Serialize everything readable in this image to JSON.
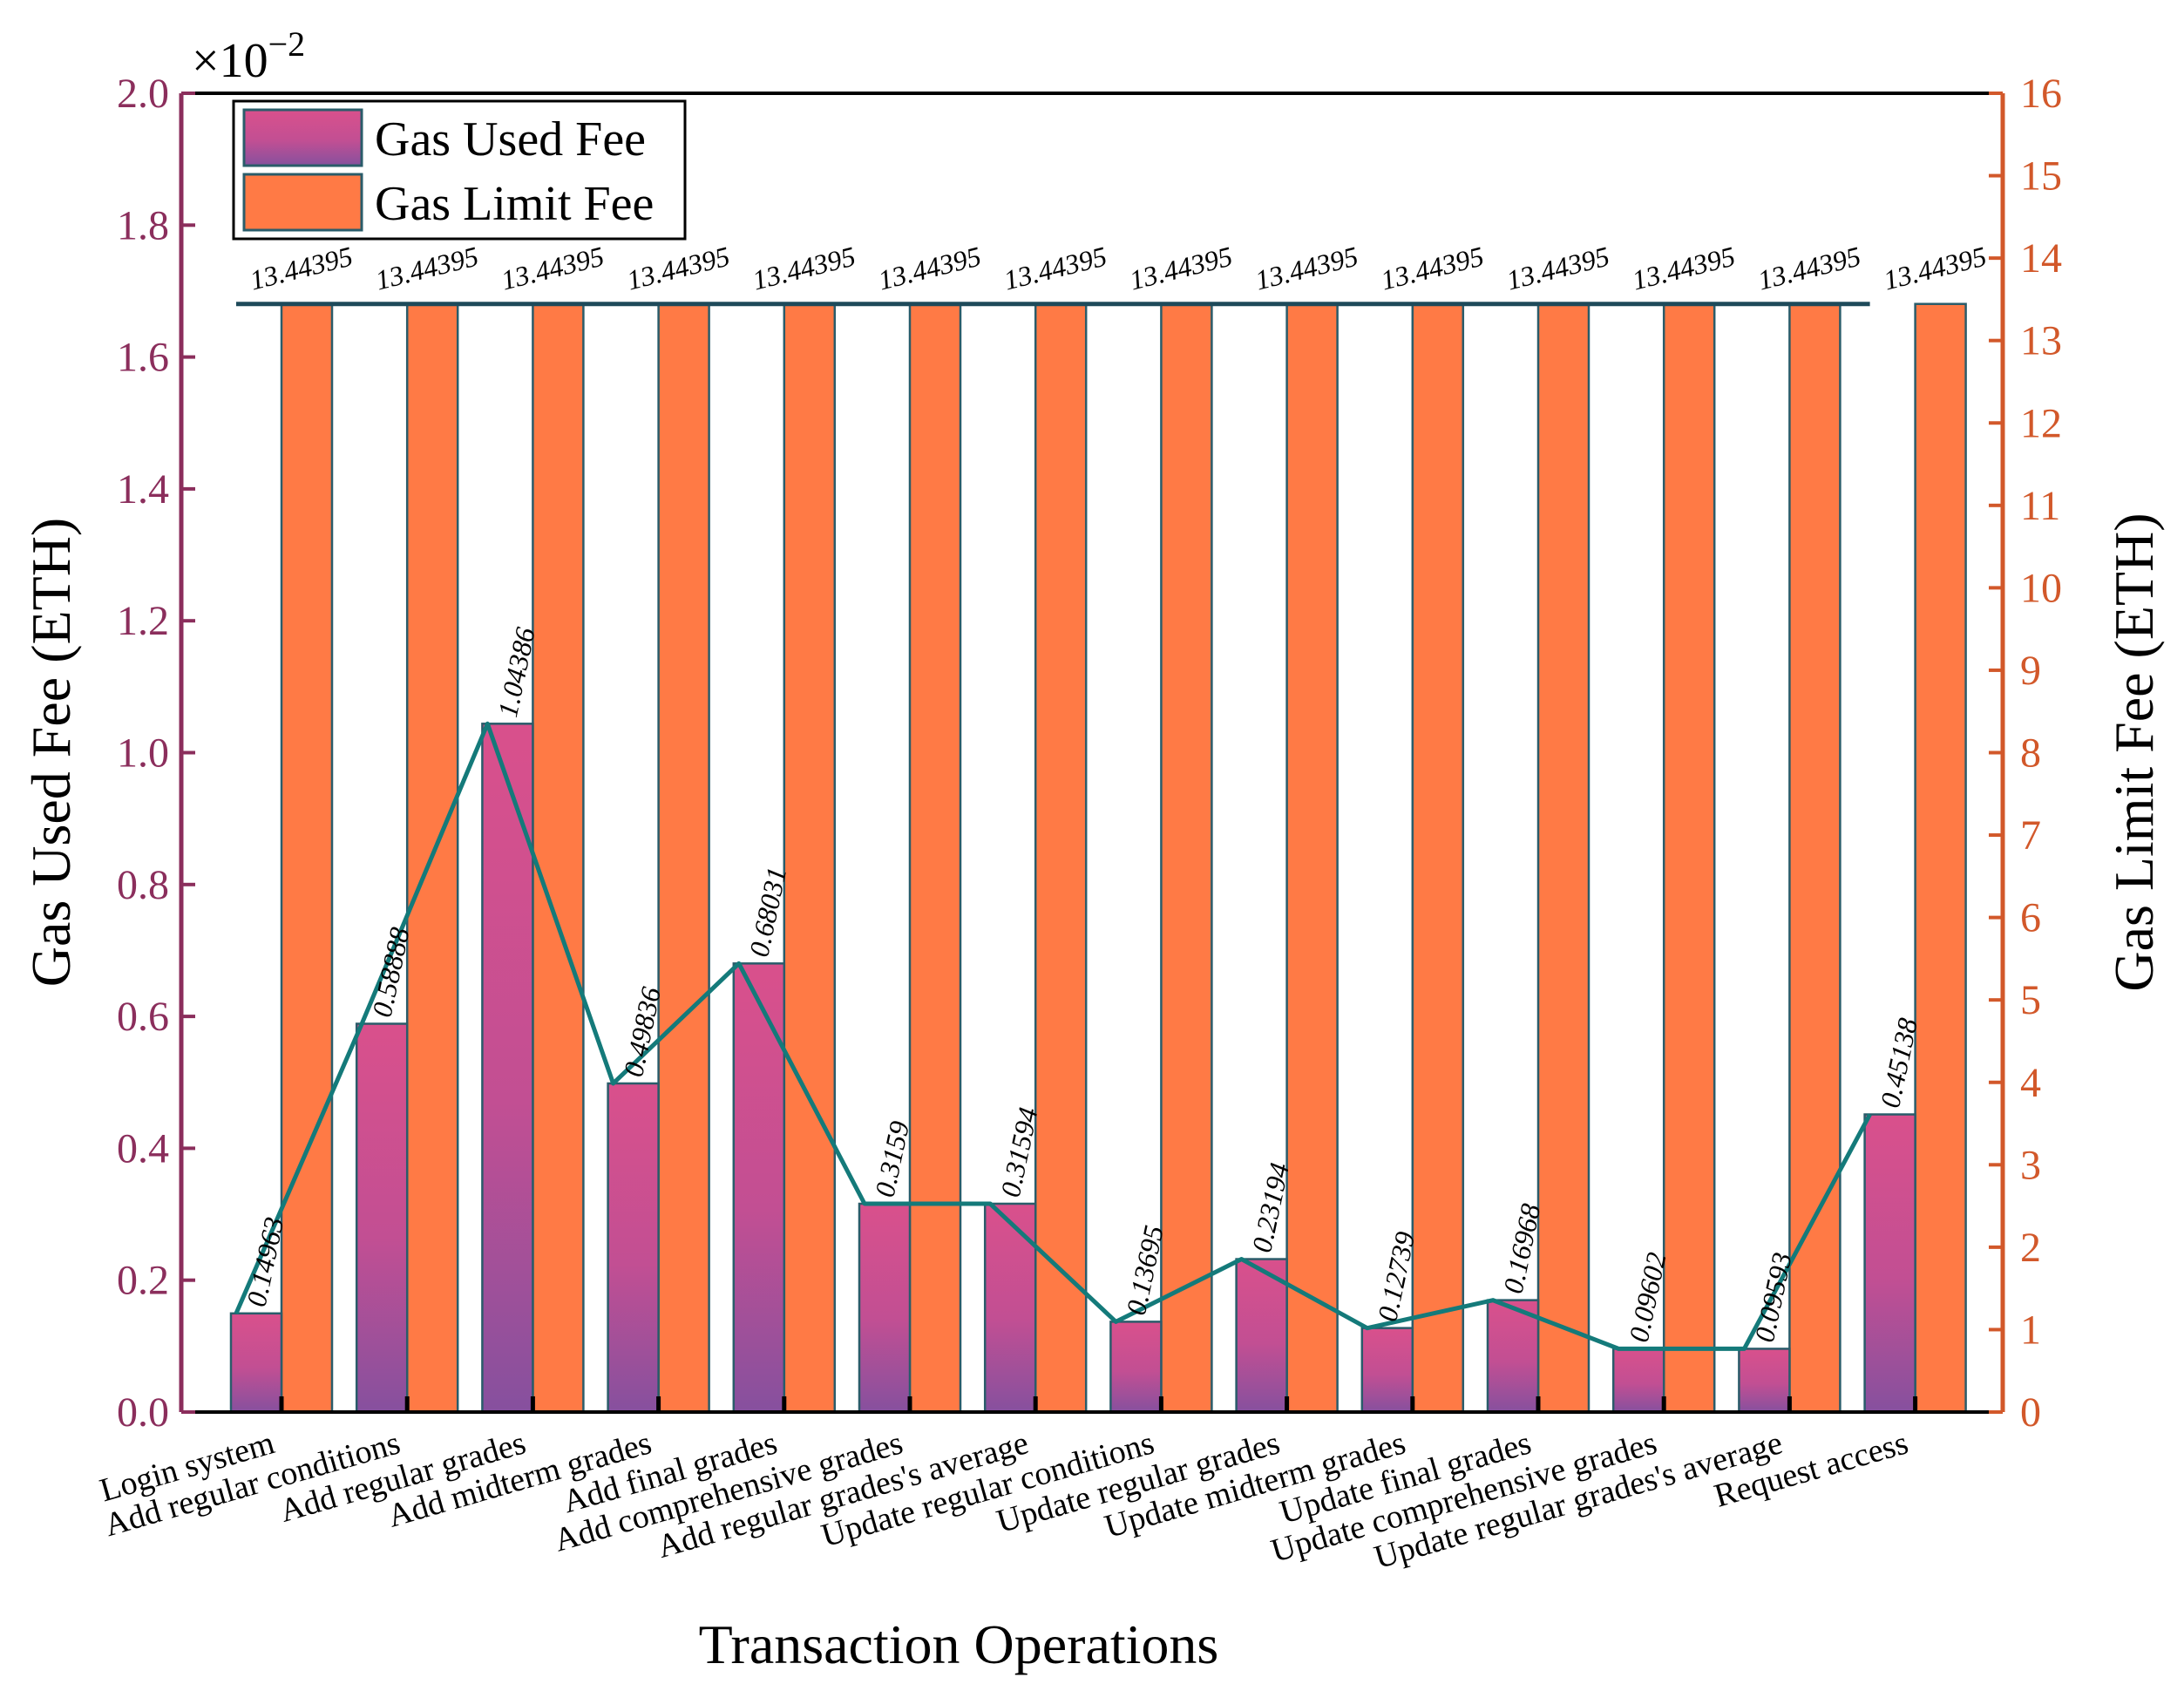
{
  "chart_data": {
    "type": "bar",
    "xlabel": "Transaction Operations",
    "ylabel_left": "Gas Used Fee (ETH)",
    "ylabel_right": "Gas Limit Fee (ETH)",
    "left_axis": {
      "multiplier_label": "×10",
      "multiplier_exponent": "−2",
      "ylim": [
        0,
        2.0
      ],
      "ticks": [
        "0.0",
        "0.2",
        "0.4",
        "0.6",
        "0.8",
        "1.0",
        "1.2",
        "1.4",
        "1.6",
        "1.8",
        "2.0"
      ]
    },
    "right_axis": {
      "ylim": [
        0,
        16
      ],
      "ticks": [
        "0",
        "1",
        "2",
        "3",
        "4",
        "5",
        "6",
        "7",
        "8",
        "9",
        "10",
        "11",
        "12",
        "13",
        "14",
        "15",
        "16"
      ]
    },
    "categories": [
      "Login system",
      "Add regular conditions",
      "Add regular grades",
      "Add midterm grades",
      "Add final grades",
      "Add comprehensive grades",
      "Add regular grades's average",
      "Update regular conditions",
      "Update regular grades",
      "Update midterm grades",
      "Update final grades",
      "Update comprehensive grades",
      "Update regular grades's average",
      "Request access"
    ],
    "series": [
      {
        "name": "Gas Used Fee",
        "axis": "left",
        "values": [
          0.14963,
          0.58888,
          1.04386,
          0.49836,
          0.68031,
          0.3159,
          0.31594,
          0.13695,
          0.23194,
          0.12739,
          0.16968,
          0.09602,
          0.09593,
          0.45138
        ],
        "labels": [
          "0.14963",
          "0.58888",
          "1.04386",
          "0.49836",
          "0.68031",
          "0.3159",
          "0.31594",
          "0.13695",
          "0.23194",
          "0.12739",
          "0.16968",
          "0.09602",
          "0.09593",
          "0.45138"
        ]
      },
      {
        "name": "Gas Limit Fee",
        "axis": "right",
        "values": [
          13.44395,
          13.44395,
          13.44395,
          13.44395,
          13.44395,
          13.44395,
          13.44395,
          13.44395,
          13.44395,
          13.44395,
          13.44395,
          13.44395,
          13.44395,
          13.44395
        ],
        "labels": [
          "13.44395",
          "13.44395",
          "13.44395",
          "13.44395",
          "13.44395",
          "13.44395",
          "13.44395",
          "13.44395",
          "13.44395",
          "13.44395",
          "13.44395",
          "13.44395",
          "13.44395",
          "13.44395"
        ]
      }
    ],
    "legend": {
      "position": "top-left"
    },
    "colors": {
      "used_top": "#D9508C",
      "used_bottom": "#86509E",
      "limit_fill": "#FF7A45",
      "trend_line": "#147A7A",
      "limit_line": "#1E4A5A",
      "left_axis": "#8B2E5C",
      "right_axis": "#D2582A"
    }
  }
}
